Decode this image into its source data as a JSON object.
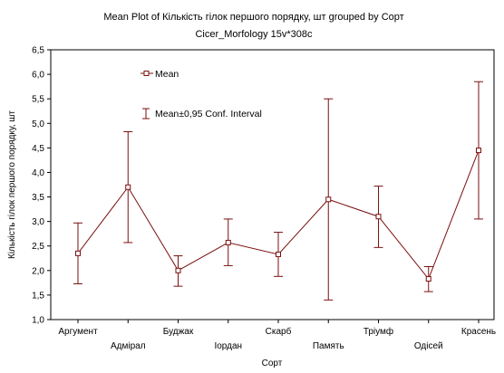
{
  "chart_data": {
    "type": "line",
    "title": "Mean Plot of Кількість гілок першого порядку, шт grouped by  Сорт",
    "subtitle": "Cicer_Morfology 15v*308c",
    "xlabel": "Сорт",
    "ylabel": "Кількість гілок першого порядку, шт",
    "ylim": [
      1.0,
      6.5
    ],
    "yticks": [
      "1,0",
      "1,5",
      "2,0",
      "2,5",
      "3,0",
      "3,5",
      "4,0",
      "4,5",
      "5,0",
      "5,5",
      "6,0",
      "6,5"
    ],
    "categories": [
      "Аргумент",
      "Адмірал",
      "Буджак",
      "Іордан",
      "Скарб",
      "Память",
      "Тріумф",
      "Одісей",
      "Красень"
    ],
    "series": [
      {
        "name": "Mean",
        "values": [
          2.35,
          3.7,
          2.0,
          2.57,
          2.33,
          3.45,
          3.1,
          1.83,
          4.45
        ],
        "lower": [
          1.73,
          2.57,
          1.68,
          2.1,
          1.88,
          1.4,
          2.47,
          1.57,
          3.05
        ],
        "upper": [
          2.97,
          4.83,
          2.3,
          3.05,
          2.78,
          5.5,
          3.72,
          2.08,
          5.85
        ]
      }
    ],
    "legend": {
      "placement": "top-left",
      "mean_label": "Mean",
      "ci_label": "Mean±0,95 Conf. Interval"
    },
    "grid": false,
    "color": "#7a0f0f"
  }
}
